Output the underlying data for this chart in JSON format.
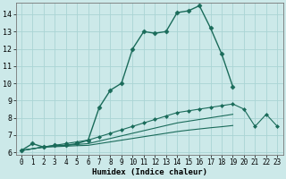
{
  "xlabel": "Humidex (Indice chaleur)",
  "bg_color": "#cce9e9",
  "grid_color": "#aad4d4",
  "line_color": "#1a6b5a",
  "xlim": [
    -0.5,
    23.5
  ],
  "ylim": [
    5.85,
    14.65
  ],
  "yticks": [
    6,
    7,
    8,
    9,
    10,
    11,
    12,
    13,
    14
  ],
  "xticks": [
    0,
    1,
    2,
    3,
    4,
    5,
    6,
    7,
    8,
    9,
    10,
    11,
    12,
    13,
    14,
    15,
    16,
    17,
    18,
    19,
    20,
    21,
    22,
    23
  ],
  "series": [
    {
      "x": [
        0,
        1,
        2,
        3,
        4,
        5,
        6,
        7,
        8,
        9,
        10,
        11,
        12,
        13,
        14,
        15,
        16,
        17,
        18,
        19
      ],
      "y": [
        6.1,
        6.5,
        6.3,
        6.4,
        6.4,
        6.5,
        6.7,
        8.6,
        9.6,
        10.0,
        12.0,
        13.0,
        12.9,
        13.0,
        14.1,
        14.2,
        14.5,
        13.2,
        11.7,
        9.8
      ],
      "marker": "D",
      "markersize": 2.5,
      "linewidth": 1.0
    },
    {
      "x": [
        0,
        2,
        3,
        4,
        5,
        6,
        7,
        8,
        9,
        10,
        11,
        12,
        13,
        14,
        15,
        16,
        17,
        18,
        19,
        20,
        21,
        22,
        23
      ],
      "y": [
        6.1,
        6.3,
        6.4,
        6.5,
        6.6,
        6.7,
        6.9,
        7.1,
        7.3,
        7.5,
        7.7,
        7.9,
        8.1,
        8.3,
        8.4,
        8.5,
        8.6,
        8.7,
        8.8,
        8.5,
        7.5,
        8.2,
        7.5
      ],
      "marker": "D",
      "markersize": 2.0,
      "linewidth": 0.8
    },
    {
      "x": [
        0,
        2,
        3,
        4,
        5,
        6,
        7,
        8,
        9,
        10,
        11,
        12,
        13,
        14,
        15,
        16,
        17,
        18,
        19
      ],
      "y": [
        6.1,
        6.3,
        6.35,
        6.4,
        6.45,
        6.5,
        6.65,
        6.8,
        6.95,
        7.1,
        7.25,
        7.4,
        7.55,
        7.7,
        7.8,
        7.9,
        8.0,
        8.1,
        8.2
      ],
      "marker": null,
      "markersize": 0,
      "linewidth": 0.8
    },
    {
      "x": [
        0,
        2,
        3,
        4,
        5,
        6,
        7,
        8,
        9,
        10,
        11,
        12,
        13,
        14,
        15,
        16,
        17,
        18,
        19
      ],
      "y": [
        6.1,
        6.3,
        6.32,
        6.35,
        6.38,
        6.4,
        6.5,
        6.6,
        6.7,
        6.8,
        6.9,
        7.0,
        7.1,
        7.2,
        7.28,
        7.35,
        7.42,
        7.48,
        7.55
      ],
      "marker": null,
      "markersize": 0,
      "linewidth": 0.8
    }
  ]
}
